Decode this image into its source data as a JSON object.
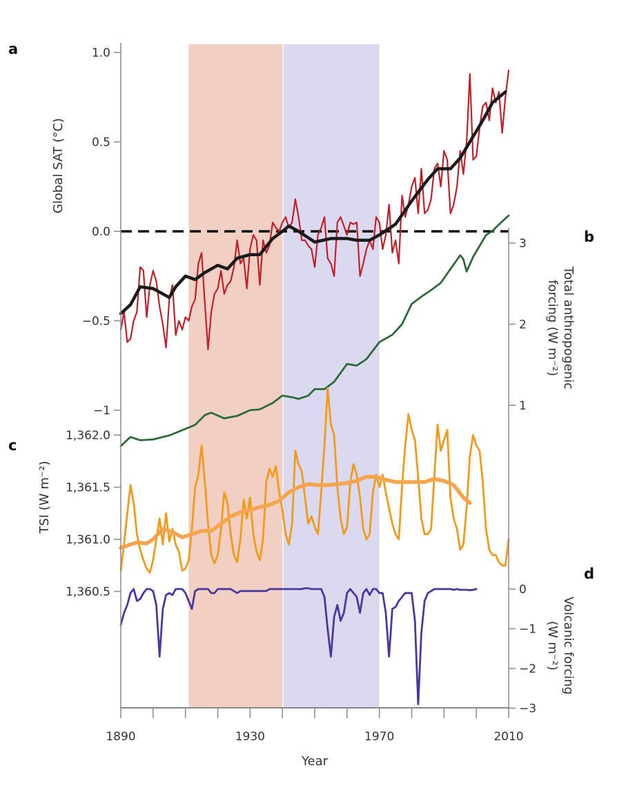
{
  "chart_data": [
    {
      "panel": "a",
      "type": "line",
      "ylabel": "Global SAT (°C)",
      "ylim": [
        -1,
        1.05
      ],
      "yticks": [
        "1.0",
        "0.5",
        "0.0",
        "−0.5",
        "−1"
      ],
      "ytick_values": [
        1.0,
        0.5,
        0.0,
        -0.5,
        -1.0
      ],
      "reference_line": {
        "y": 0.0,
        "style": "dashed",
        "color": "#111111"
      },
      "series": [
        {
          "color": "#c0202a",
          "start_year": 1890,
          "values": [
            -0.55,
            -0.45,
            -0.62,
            -0.6,
            -0.5,
            -0.45,
            -0.2,
            -0.22,
            -0.48,
            -0.3,
            -0.22,
            -0.28,
            -0.42,
            -0.52,
            -0.65,
            -0.38,
            -0.3,
            -0.58,
            -0.5,
            -0.55,
            -0.48,
            -0.5,
            -0.42,
            -0.38,
            -0.18,
            -0.12,
            -0.4,
            -0.66,
            -0.45,
            -0.35,
            -0.32,
            -0.22,
            -0.35,
            -0.3,
            -0.28,
            -0.2,
            -0.05,
            -0.18,
            -0.15,
            -0.32,
            -0.1,
            -0.02,
            -0.05,
            -0.3,
            -0.05,
            -0.12,
            -0.08,
            0.05,
            0.02,
            0.0,
            0.05,
            0.08,
            0.02,
            0.05,
            0.18,
            0.08,
            -0.05,
            -0.05,
            -0.08,
            -0.1,
            -0.2,
            -0.02,
            0.02,
            0.08,
            -0.15,
            -0.18,
            -0.25,
            0.05,
            0.08,
            0.03,
            -0.02,
            0.05,
            0.04,
            0.05,
            -0.25,
            -0.18,
            -0.1,
            -0.05,
            -0.1,
            0.08,
            0.05,
            -0.1,
            -0.02,
            0.15,
            -0.12,
            -0.05,
            -0.18,
            0.2,
            0.08,
            0.15,
            0.25,
            0.3,
            0.1,
            0.35,
            0.1,
            0.12,
            0.18,
            0.35,
            0.38,
            0.25,
            0.45,
            0.4,
            0.1,
            0.15,
            0.25,
            0.45,
            0.32,
            0.5,
            0.88,
            0.4,
            0.42,
            0.58,
            0.7,
            0.72,
            0.62,
            0.8,
            0.72,
            0.78,
            0.55,
            0.75,
            0.9
          ]
        },
        {
          "color": "#1a1a1a",
          "smoothed": true,
          "x": [
            1890,
            1893,
            1896,
            1900,
            1903,
            1905,
            1907,
            1910,
            1913,
            1916,
            1920,
            1923,
            1926,
            1930,
            1933,
            1937,
            1940,
            1942,
            1945,
            1950,
            1955,
            1960,
            1963,
            1967,
            1970,
            1975,
            1980,
            1985,
            1988,
            1992,
            1995,
            1998,
            2002,
            2005,
            2007,
            2009
          ],
          "values": [
            -0.46,
            -0.41,
            -0.31,
            -0.32,
            -0.35,
            -0.37,
            -0.31,
            -0.25,
            -0.27,
            -0.23,
            -0.19,
            -0.21,
            -0.15,
            -0.13,
            -0.13,
            -0.04,
            0.0,
            0.03,
            0.0,
            -0.06,
            -0.04,
            -0.04,
            -0.05,
            -0.05,
            -0.02,
            0.04,
            0.17,
            0.29,
            0.35,
            0.35,
            0.41,
            0.5,
            0.62,
            0.72,
            0.75,
            0.78
          ]
        }
      ]
    },
    {
      "panel": "b",
      "type": "line",
      "ylabel_lines": [
        "Total anthropogenic",
        "forcing (W m⁻²)"
      ],
      "yticks": [
        "3",
        "2",
        "1"
      ],
      "ytick_values": [
        3,
        2,
        1
      ],
      "series": [
        {
          "color": "#2d6a3a",
          "x": [
            1890,
            1893,
            1896,
            1900,
            1905,
            1910,
            1913,
            1916,
            1918,
            1922,
            1926,
            1930,
            1933,
            1937,
            1940,
            1943,
            1945,
            1948,
            1950,
            1953,
            1956,
            1960,
            1963,
            1966,
            1970,
            1974,
            1977,
            1980,
            1983,
            1986,
            1989,
            1992,
            1995,
            1996,
            1997,
            1999,
            2003,
            2005,
            2007,
            2010
          ],
          "values": [
            0.5,
            0.61,
            0.57,
            0.58,
            0.63,
            0.71,
            0.76,
            0.88,
            0.91,
            0.84,
            0.87,
            0.94,
            0.95,
            1.03,
            1.12,
            1.1,
            1.08,
            1.12,
            1.2,
            1.2,
            1.29,
            1.51,
            1.49,
            1.57,
            1.78,
            1.87,
            2.0,
            2.25,
            2.34,
            2.42,
            2.51,
            2.68,
            2.85,
            2.8,
            2.65,
            2.83,
            3.1,
            3.15,
            3.23,
            3.34
          ]
        }
      ]
    },
    {
      "panel": "c",
      "type": "line",
      "ylabel": "TSI (W m⁻²)",
      "yticks": [
        "1,362.0",
        "1,361.5",
        "1,361.0",
        "1,360.5"
      ],
      "ytick_values": [
        1362.0,
        1361.5,
        1361.0,
        1360.5
      ],
      "series": [
        {
          "color": "#f29a1c",
          "start_year": 1890,
          "values": [
            1360.7,
            1360.95,
            1361.25,
            1361.52,
            1361.35,
            1361.05,
            1360.9,
            1360.8,
            1360.72,
            1360.68,
            1360.8,
            1361.0,
            1361.2,
            1360.95,
            1361.25,
            1360.98,
            1361.1,
            1360.95,
            1360.88,
            1360.7,
            1360.72,
            1360.8,
            1361.1,
            1361.5,
            1361.62,
            1361.9,
            1361.55,
            1361.15,
            1360.85,
            1360.77,
            1360.85,
            1361.1,
            1361.45,
            1361.35,
            1361.05,
            1360.85,
            1360.78,
            1361.0,
            1361.38,
            1361.2,
            1361.4,
            1361.05,
            1360.88,
            1360.8,
            1361.0,
            1361.55,
            1361.68,
            1361.6,
            1361.7,
            1361.45,
            1361.28,
            1361.05,
            1360.95,
            1361.15,
            1361.85,
            1361.72,
            1361.65,
            1361.4,
            1361.15,
            1361.22,
            1361.12,
            1361.05,
            1361.45,
            1361.9,
            1362.45,
            1362.1,
            1362.0,
            1361.5,
            1361.2,
            1361.05,
            1361.12,
            1361.55,
            1361.72,
            1361.62,
            1361.4,
            1361.1,
            1361.0,
            1361.05,
            1361.45,
            1361.62,
            1361.5,
            1361.62,
            1361.45,
            1361.3,
            1361.15,
            1361.05,
            1361.0,
            1361.5,
            1361.9,
            1362.2,
            1362.05,
            1361.95,
            1361.6,
            1361.2,
            1361.05,
            1361.05,
            1361.1,
            1361.6,
            1362.1,
            1361.85,
            1361.95,
            1362.05,
            1361.4,
            1361.2,
            1361.1,
            1360.9,
            1360.95,
            1361.3,
            1361.8,
            1362.0,
            1361.9,
            1361.85,
            1361.55,
            1361.1,
            1360.9,
            1360.85,
            1360.85,
            1360.78,
            1360.75,
            1360.75,
            1361.0
          ]
        },
        {
          "color": "#f5a54e",
          "smoothed": true,
          "x": [
            1890,
            1895,
            1898,
            1900,
            1903,
            1906,
            1909,
            1912,
            1915,
            1918,
            1921,
            1924,
            1927,
            1930,
            1933,
            1936,
            1939,
            1942,
            1945,
            1948,
            1951,
            1954,
            1957,
            1960,
            1963,
            1966,
            1969,
            1972,
            1975,
            1978,
            1981,
            1984,
            1987,
            1990,
            1993,
            1996,
            1998
          ],
          "values": [
            1360.92,
            1360.97,
            1360.96,
            1361.0,
            1361.1,
            1361.07,
            1361.02,
            1361.05,
            1361.08,
            1361.08,
            1361.15,
            1361.22,
            1361.26,
            1361.28,
            1361.31,
            1361.33,
            1361.37,
            1361.45,
            1361.5,
            1361.53,
            1361.52,
            1361.52,
            1361.53,
            1361.54,
            1361.56,
            1361.6,
            1361.6,
            1361.57,
            1361.55,
            1361.55,
            1361.55,
            1361.55,
            1361.58,
            1361.56,
            1361.52,
            1361.4,
            1361.35
          ]
        }
      ]
    },
    {
      "panel": "d",
      "type": "line",
      "ylabel_lines": [
        "Volcanic forcing",
        "(W m⁻²)"
      ],
      "yticks": [
        "0",
        "−1",
        "−2",
        "−3"
      ],
      "ytick_values": [
        0,
        -1,
        -2,
        -3
      ],
      "series": [
        {
          "color": "#4a389e",
          "start_year": 1890,
          "values": [
            -0.9,
            -0.6,
            -0.4,
            -0.1,
            0,
            -0.3,
            -0.25,
            -0.1,
            0,
            0,
            -0.05,
            -0.4,
            -1.7,
            -0.5,
            -0.15,
            -0.1,
            -0.15,
            0,
            0,
            0,
            -0.1,
            -0.3,
            -0.5,
            -0.05,
            0,
            0,
            0,
            0,
            -0.1,
            -0.1,
            0,
            0,
            0,
            0,
            0,
            -0.05,
            -0.1,
            -0.05,
            -0.05,
            -0.05,
            -0.05,
            -0.05,
            -0.05,
            -0.05,
            -0.05,
            -0.05,
            0,
            0,
            0,
            0,
            0,
            0,
            0,
            0,
            0,
            0,
            0,
            0.02,
            0.02,
            0,
            0,
            0,
            0,
            -0.2,
            -1.0,
            -1.7,
            -0.7,
            -0.4,
            -0.8,
            -0.6,
            -0.1,
            0,
            -0.1,
            -0.2,
            -0.6,
            -0.1,
            0,
            -0.15,
            0,
            0,
            -0.1,
            -0.1,
            -0.6,
            -1.7,
            -0.5,
            -0.45,
            -0.3,
            -0.2,
            -0.1,
            -0.1,
            -0.1,
            -0.8,
            -2.9,
            -1.1,
            -0.3,
            -0.1,
            -0.05,
            0,
            0,
            0,
            0,
            0,
            0,
            -0.02,
            0,
            -0.02,
            -0.02,
            -0.02,
            -0.03,
            -0.02,
            0
          ]
        }
      ]
    }
  ],
  "x_axis": {
    "label": "Year",
    "range": [
      1890,
      2010
    ],
    "ticks": [
      "1890",
      "1930",
      "1970",
      "2010"
    ],
    "tick_values": [
      1890,
      1930,
      1970,
      2010
    ],
    "minor_tick_step": 10
  },
  "shaded_periods": [
    {
      "from": 1911,
      "to": 1940,
      "color": "#f1cfc2"
    },
    {
      "from": 1940.3,
      "to": 1970,
      "color": "#dad9ef"
    }
  ],
  "panel_letters": [
    "a",
    "b",
    "c",
    "d"
  ]
}
